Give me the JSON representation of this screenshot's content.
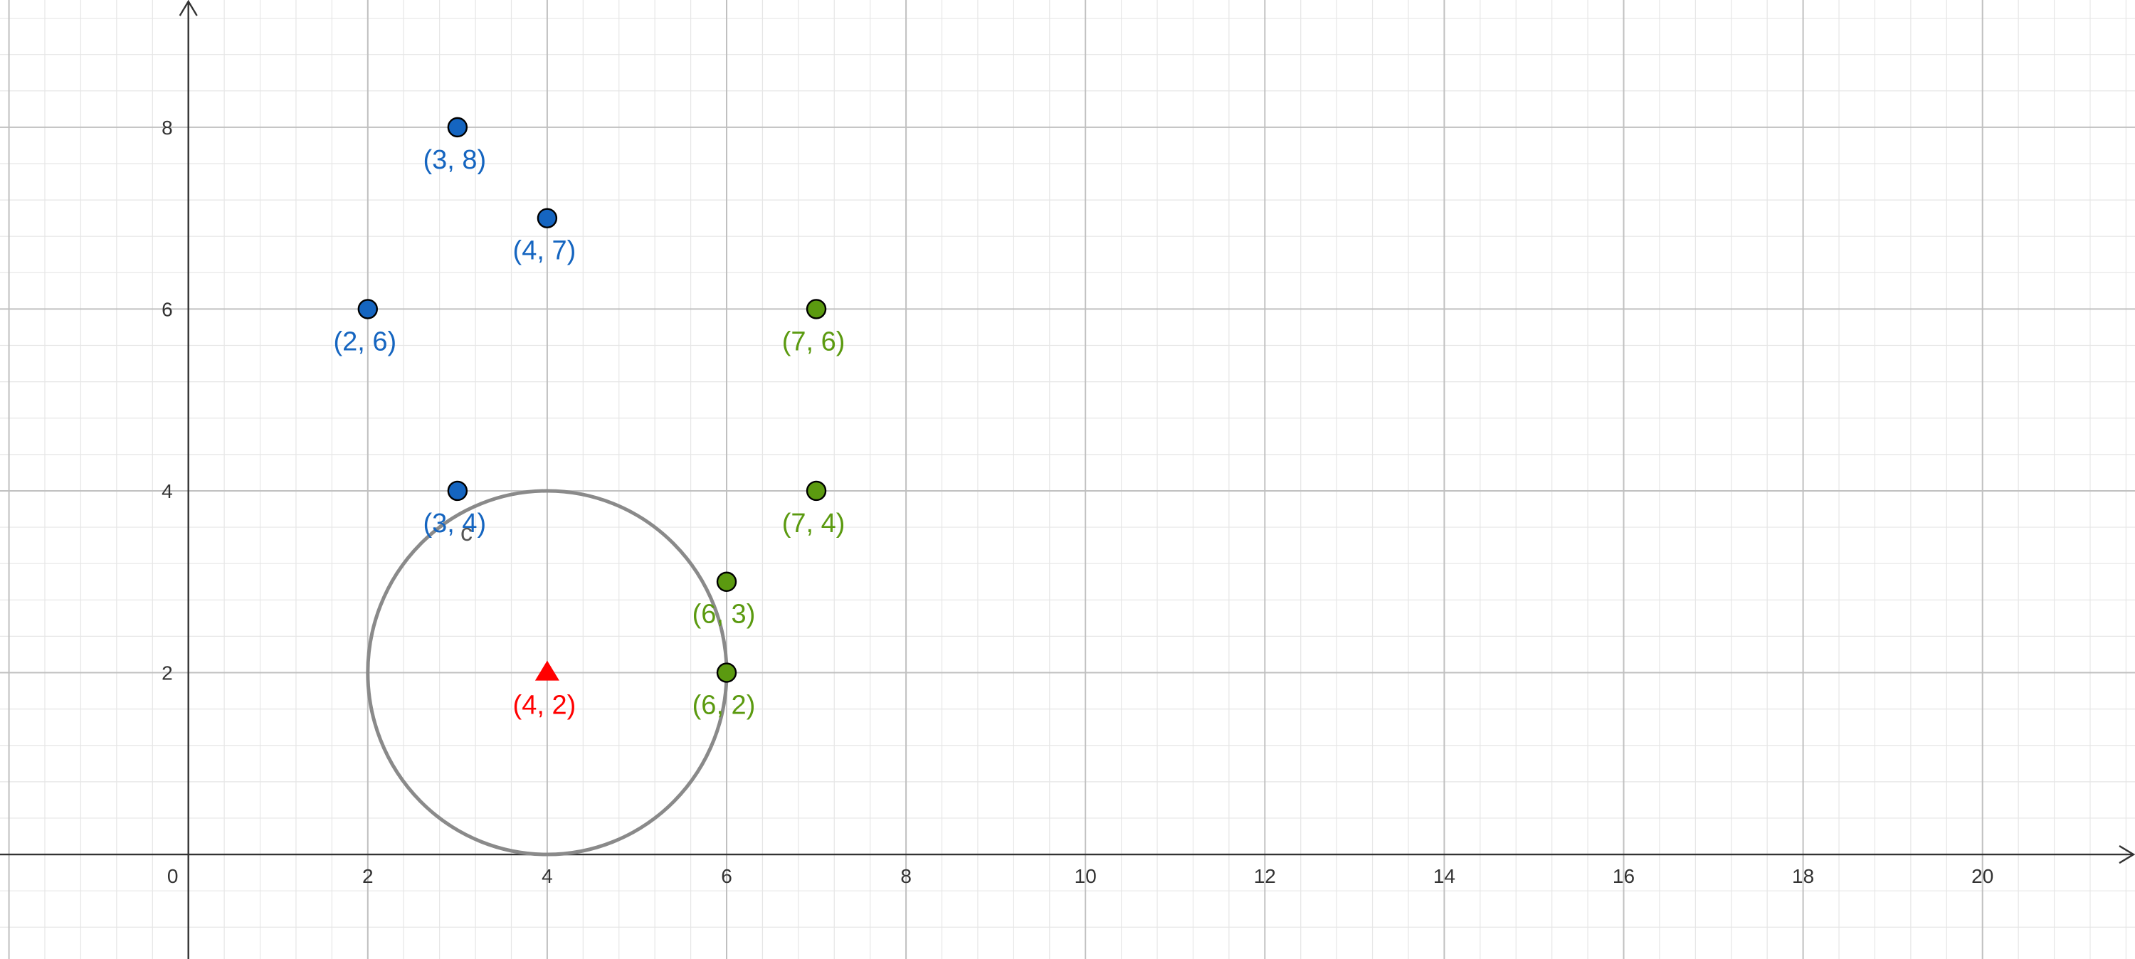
{
  "chart_data": {
    "type": "scatter",
    "xlim": [
      -2.1,
      21.7
    ],
    "ylim": [
      -1.15,
      9.4
    ],
    "grid": true,
    "major_step": 2,
    "minor_step": 0.4,
    "axis_color": "#333333",
    "major_grid_color": "#c0c0c0",
    "minor_grid_color": "#e6e6e6",
    "origin_label": "0",
    "x_tick_values": [
      2,
      4,
      6,
      8,
      10,
      12,
      14,
      16,
      18,
      20
    ],
    "y_tick_values": [
      2,
      4,
      6,
      8
    ],
    "x_tick_labels": [
      "2",
      "4",
      "6",
      "8",
      "10",
      "12",
      "14",
      "16",
      "18",
      "20"
    ],
    "y_tick_labels": [
      "2",
      "4",
      "6",
      "8"
    ],
    "series": [
      {
        "color": "#1565c0",
        "marker": "circle",
        "points": [
          {
            "x": 3,
            "y": 8,
            "label": "(3, 8)"
          },
          {
            "x": 4,
            "y": 7,
            "label": "(4, 7)"
          },
          {
            "x": 2,
            "y": 6,
            "label": "(2, 6)"
          },
          {
            "x": 3,
            "y": 4,
            "label": "(3, 4)"
          }
        ]
      },
      {
        "color": "#5b9a10",
        "marker": "circle",
        "points": [
          {
            "x": 7,
            "y": 6,
            "label": "(7, 6)"
          },
          {
            "x": 7,
            "y": 4,
            "label": "(7, 4)"
          },
          {
            "x": 6,
            "y": 3,
            "label": "(6, 3)"
          },
          {
            "x": 6,
            "y": 2,
            "label": "(6, 2)"
          }
        ]
      },
      {
        "color": "#ff0000",
        "marker": "triangle",
        "points": [
          {
            "x": 4,
            "y": 2,
            "label": "(4, 2)"
          }
        ]
      }
    ],
    "circles": [
      {
        "name": "c",
        "cx": 4,
        "cy": 2,
        "r": 2,
        "color": "#8a8a8a",
        "label_x": 3.1,
        "label_y": 3.45
      }
    ]
  }
}
